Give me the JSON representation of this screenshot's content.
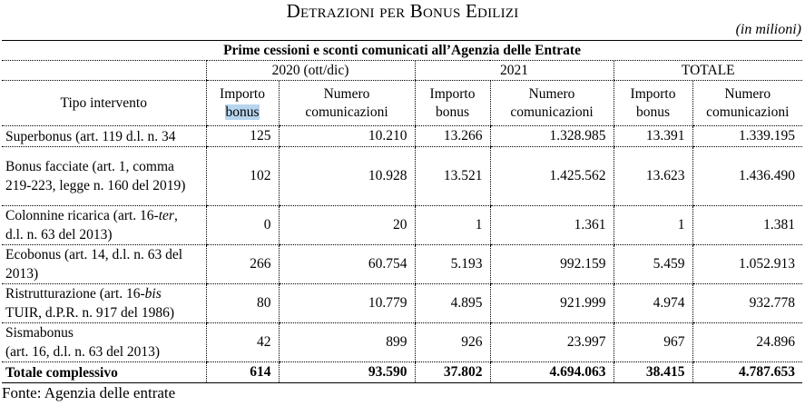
{
  "title": "Detrazioni per Bonus Edilizi",
  "unit": "(in milioni)",
  "table": {
    "caption": "Prime cessioni e sconti comunicati all’Agenzia delle Entrate",
    "row_header": "Tipo intervento",
    "periods": [
      "2020 (ott/dic)",
      "2021",
      "TOTALE"
    ],
    "subheaders": {
      "importo_line1": "Importo",
      "importo_line2": "bonus",
      "numero_line1": "Numero",
      "numero_line2": "comunicazioni"
    },
    "rows": [
      {
        "label_a": "Superbonus (art. 119 d.l. n. 34",
        "label_it": "",
        "label_b": "",
        "label_c": "",
        "values": [
          "125",
          "10.210",
          "13.266",
          "1.328.985",
          "13.391",
          "1.339.195"
        ]
      },
      {
        "label_a": "Bonus facciate (art. 1, comma 219-223, legge n. 160 del 2019)",
        "label_it": "",
        "label_b": "",
        "label_c": "",
        "values": [
          "102",
          "10.928",
          "13.521",
          "1.425.562",
          "13.623",
          "1.436.490"
        ]
      },
      {
        "label_a": "Colonnine ricarica (art. 16-",
        "label_it": "ter",
        "label_b": ",",
        "label_c": "d.l. n. 63 del 2013)",
        "values": [
          "0",
          "20",
          "1",
          "1.361",
          "1",
          "1.381"
        ]
      },
      {
        "label_a": "Ecobonus (art. 14, d.l. n. 63 del 2013)",
        "label_it": "",
        "label_b": "",
        "label_c": "",
        "values": [
          "266",
          "60.754",
          "5.193",
          "992.159",
          "5.459",
          "1.052.913"
        ]
      },
      {
        "label_a": "Ristrutturazione (art. 16-",
        "label_it": "bis",
        "label_b": "",
        "label_c": "TUIR, d.P.R. n. 917 del 1986)",
        "values": [
          "80",
          "10.779",
          "4.895",
          "921.999",
          "4.974",
          "932.778"
        ]
      },
      {
        "label_a": "Sismabonus",
        "label_it": "",
        "label_b": "",
        "label_c": "(art. 16, d.l. n. 63 del 2013)",
        "values": [
          "42",
          "899",
          "926",
          "23.997",
          "967",
          "24.896"
        ]
      }
    ],
    "total": {
      "label": "Totale complessivo",
      "values": [
        "614",
        "93.590",
        "37.802",
        "4.694.063",
        "38.415",
        "4.787.653"
      ]
    }
  },
  "source": "Fonte: Agenzia delle entrate",
  "colors": {
    "highlight": "#b7d5ee"
  }
}
